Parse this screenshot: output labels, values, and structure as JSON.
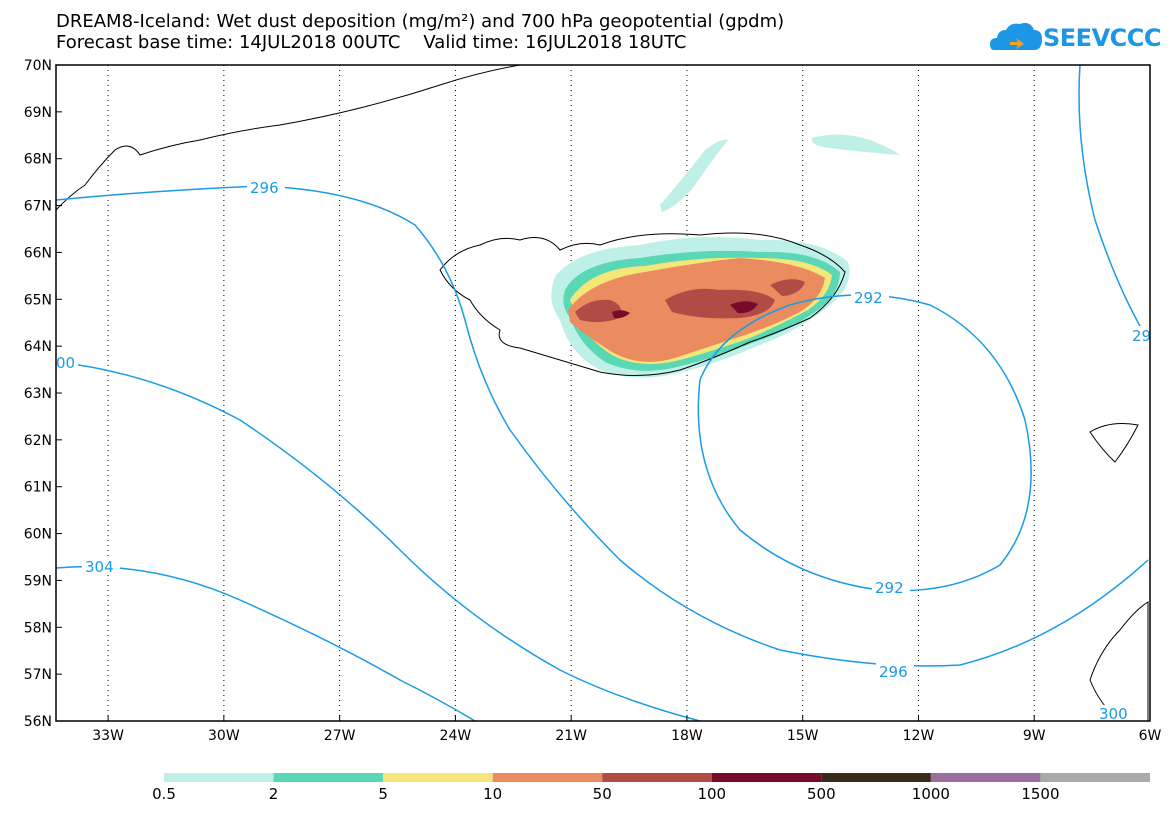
{
  "title": {
    "line1": "DREAM8-Iceland: Wet dust deposition (mg/m²) and 700 hPa geopotential (gpdm)",
    "line2": "Forecast base time: 14JUL2018 00UTC    Valid time: 16JUL2018 18UTC"
  },
  "logo": {
    "text": "SEEVCCC",
    "color": "#1e96e6"
  },
  "axes": {
    "lat_labels": [
      "70N",
      "69N",
      "68N",
      "67N",
      "66N",
      "65N",
      "64N",
      "63N",
      "62N",
      "61N",
      "60N",
      "59N",
      "58N",
      "57N",
      "56N"
    ],
    "lon_labels": [
      "33W",
      "30W",
      "27W",
      "24W",
      "21W",
      "18W",
      "15W",
      "12W",
      "9W",
      "6W"
    ]
  },
  "contours": {
    "color": "#1a9be6",
    "labels": [
      "296",
      "00",
      "304",
      "292",
      "292",
      "296",
      "300",
      "29"
    ]
  },
  "legend": {
    "colors": [
      "#bff0e8",
      "#5ad7b4",
      "#f5e67a",
      "#ea8c5f",
      "#b04b46",
      "#780a2a",
      "#3a2a1a",
      "#9a6fa0",
      "#aaaaaa"
    ],
    "labels": [
      "0.5",
      "2",
      "5",
      "10",
      "50",
      "100",
      "500",
      "1000",
      "1500"
    ]
  }
}
